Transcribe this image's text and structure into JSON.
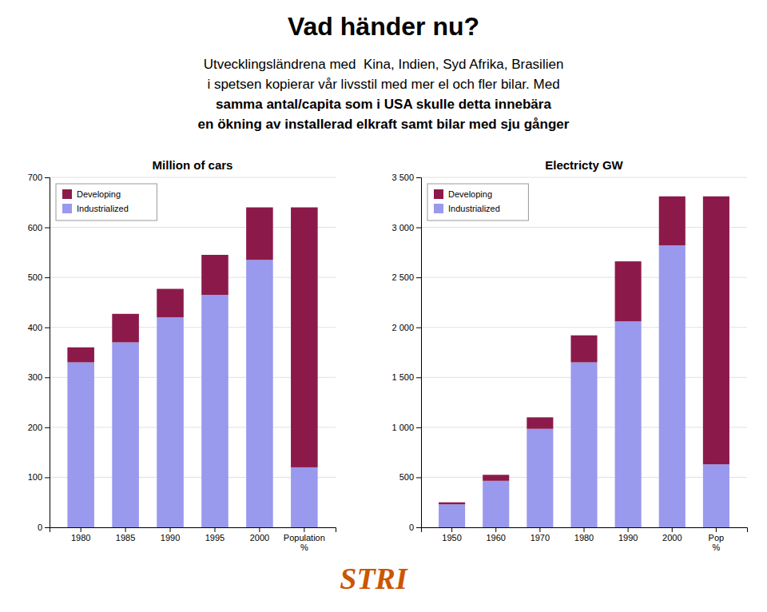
{
  "title": "Vad händer nu?",
  "subtitle": [
    "Utvecklingsländrena med  Kina, Indien, Syd Afrika, Brasilien",
    "i spetsen kopierar vår livsstil med mer el och fler bilar. Med",
    "samma antal/capita som i USA skulle detta innebära",
    "en ökning av installerad elkraft samt bilar med sju gånger"
  ],
  "annotations": [
    "STRI"
  ],
  "chart_data": [
    {
      "type": "bar",
      "stacked": true,
      "title": "Million of cars",
      "categories": [
        "1980",
        "1985",
        "1990",
        "1995",
        "2000",
        "Population\n%"
      ],
      "series": [
        {
          "name": "Industrialized",
          "color": "#9999EE",
          "values": [
            330,
            370,
            420,
            465,
            535,
            120
          ]
        },
        {
          "name": "Developing",
          "color": "#8B1A4A",
          "values": [
            30,
            57,
            57,
            80,
            105,
            520
          ]
        }
      ],
      "ylim": [
        0,
        700
      ],
      "yticks": [
        0,
        100,
        200,
        300,
        400,
        500,
        600,
        700
      ],
      "grid": true,
      "legend": "upper left"
    },
    {
      "type": "bar",
      "stacked": true,
      "title": "Electricty GW",
      "categories": [
        "1950",
        "1960",
        "1970",
        "1980",
        "1990",
        "2000",
        "Pop\n%"
      ],
      "series": [
        {
          "name": "Industrialized",
          "color": "#9999EE",
          "values": [
            230,
            465,
            985,
            1650,
            2060,
            2820,
            630
          ]
        },
        {
          "name": "Developing",
          "color": "#8B1A4A",
          "values": [
            20,
            60,
            115,
            270,
            600,
            490,
            2680
          ]
        }
      ],
      "ylim": [
        0,
        3500
      ],
      "yticks": [
        0,
        500,
        {
          "value": 1000,
          "label": "1 000"
        },
        {
          "value": 1500,
          "label": "1 500"
        },
        {
          "value": 2000,
          "label": "2 000"
        },
        {
          "value": 2500,
          "label": "2 500"
        },
        {
          "value": 3000,
          "label": "3 000"
        },
        {
          "value": 3500,
          "label": "3 500"
        }
      ],
      "grid": true,
      "legend": "upper left"
    }
  ]
}
